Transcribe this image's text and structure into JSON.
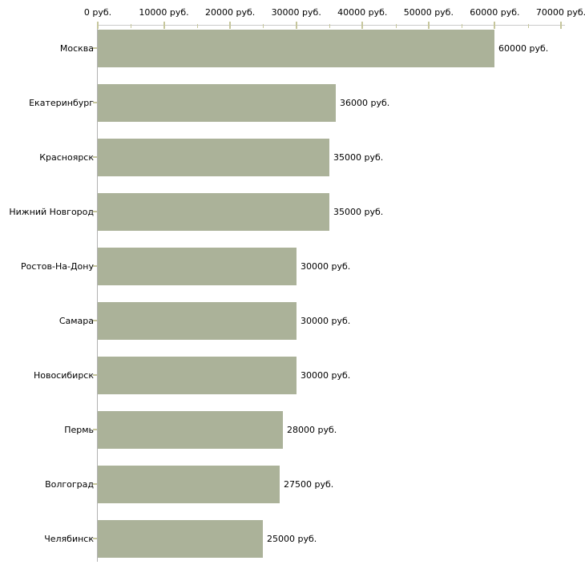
{
  "chart_data": {
    "type": "bar",
    "orientation": "horizontal",
    "title": "",
    "categories": [
      "Москва",
      "Екатеринбург",
      "Красноярск",
      "Нижний Новгород",
      "Ростов-На-Дону",
      "Самара",
      "Новосибирск",
      "Пермь",
      "Волгоград",
      "Челябинск"
    ],
    "values": [
      60000,
      36000,
      35000,
      35000,
      30000,
      30000,
      30000,
      28000,
      27500,
      25000
    ],
    "value_labels": [
      "60000 руб.",
      "36000 руб.",
      "35000 руб.",
      "35000 руб.",
      "30000 руб.",
      "30000 руб.",
      "30000 руб.",
      "28000 руб.",
      "27500 руб.",
      "25000 руб."
    ],
    "unit": "руб.",
    "x_axis": {
      "position": "top",
      "min": 0,
      "max": 70000,
      "major_tick_step": 10000,
      "minor_tick_step": 5000,
      "tick_labels": [
        "0 руб.",
        "10000 руб.",
        "20000 руб.",
        "30000 руб.",
        "40000 руб.",
        "50000 руб.",
        "60000 руб.",
        "70000 руб."
      ]
    },
    "grid": false,
    "legend": false,
    "colors": {
      "bar": "#ABB299",
      "h_axis_line": "#C9C9C9",
      "v_axis_line": "#B2B2B2",
      "tick": "#C6C69C",
      "text": "#000000",
      "background": "#FFFFFF"
    }
  }
}
